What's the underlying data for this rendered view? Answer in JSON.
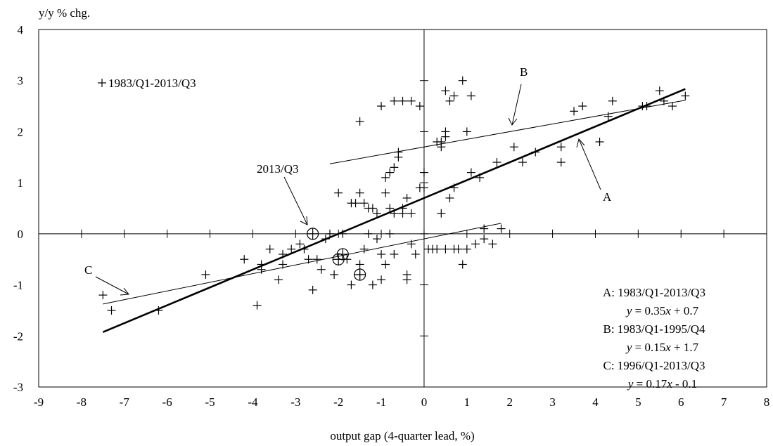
{
  "chart_data": {
    "type": "scatter",
    "ylabel": "y/y % chg.",
    "xlabel": "output gap (4-quarter lead, %)",
    "xlim": [
      -9,
      8
    ],
    "ylim": [
      -3,
      4
    ],
    "x_ticks": [
      -9,
      -8,
      -7,
      -6,
      -5,
      -4,
      -3,
      -2,
      -1,
      0,
      1,
      2,
      3,
      4,
      5,
      6,
      7,
      8
    ],
    "y_ticks": [
      -3,
      -2,
      -1,
      0,
      1,
      2,
      3,
      4
    ],
    "grid": false,
    "legend": {
      "marker": "+",
      "label": "1983/Q1-2013/Q3",
      "position": "top-left"
    },
    "series": [
      {
        "name": "1983/Q1-2013/Q3",
        "marker": "+",
        "points": [
          [
            -7.5,
            -1.2
          ],
          [
            -7.3,
            -1.5
          ],
          [
            -6.2,
            -1.5
          ],
          [
            -5.1,
            -0.8
          ],
          [
            -4.2,
            -0.5
          ],
          [
            -3.9,
            -1.4
          ],
          [
            -3.8,
            -0.6
          ],
          [
            -3.8,
            -0.7
          ],
          [
            -3.6,
            -0.3
          ],
          [
            -3.4,
            -0.9
          ],
          [
            -3.3,
            -0.6
          ],
          [
            -3.3,
            -0.4
          ],
          [
            -3.1,
            -0.3
          ],
          [
            -2.9,
            -0.2
          ],
          [
            -2.8,
            -0.3
          ],
          [
            -2.7,
            -0.5
          ],
          [
            -2.6,
            -1.1
          ],
          [
            -2.5,
            -0.5
          ],
          [
            -2.4,
            -0.7
          ],
          [
            -2.3,
            -0.1
          ],
          [
            -2.2,
            0.0
          ],
          [
            -2.1,
            -0.8
          ],
          [
            -2.0,
            0.8
          ],
          [
            -1.9,
            0.0
          ],
          [
            -1.8,
            -0.5
          ],
          [
            -1.7,
            0.6
          ],
          [
            -1.7,
            -1.0
          ],
          [
            -1.6,
            0.6
          ],
          [
            -1.5,
            0.8
          ],
          [
            -1.5,
            -0.6
          ],
          [
            -1.5,
            -0.8
          ],
          [
            -1.5,
            2.2
          ],
          [
            -1.4,
            0.6
          ],
          [
            -1.4,
            -0.3
          ],
          [
            -1.3,
            0.5
          ],
          [
            -1.3,
            0.0
          ],
          [
            -1.2,
            0.5
          ],
          [
            -1.2,
            -1.0
          ],
          [
            -1.1,
            0.4
          ],
          [
            -1.1,
            -0.1
          ],
          [
            -1.0,
            -0.4
          ],
          [
            -1.0,
            -0.9
          ],
          [
            -1.0,
            2.5
          ],
          [
            -0.9,
            1.1
          ],
          [
            -0.9,
            0.8
          ],
          [
            -0.9,
            -0.6
          ],
          [
            -0.8,
            1.2
          ],
          [
            -0.8,
            0.0
          ],
          [
            -0.8,
            0.5
          ],
          [
            -0.7,
            1.3
          ],
          [
            -0.7,
            -0.4
          ],
          [
            -0.7,
            0.4
          ],
          [
            -0.7,
            2.6
          ],
          [
            -0.6,
            1.5
          ],
          [
            -0.6,
            1.6
          ],
          [
            -0.5,
            0.5
          ],
          [
            -0.5,
            0.4
          ],
          [
            -0.5,
            2.6
          ],
          [
            -0.4,
            0.7
          ],
          [
            -0.4,
            -0.8
          ],
          [
            -0.4,
            -0.9
          ],
          [
            -0.3,
            0.4
          ],
          [
            -0.3,
            -0.2
          ],
          [
            -0.3,
            2.6
          ],
          [
            -0.2,
            -0.4
          ],
          [
            -0.1,
            2.5
          ],
          [
            -0.1,
            0.9
          ],
          [
            0.0,
            1.2
          ],
          [
            0.0,
            0.9
          ],
          [
            0.1,
            -0.3
          ],
          [
            0.2,
            -0.3
          ],
          [
            0.3,
            1.8
          ],
          [
            0.3,
            -0.3
          ],
          [
            0.4,
            1.8
          ],
          [
            0.4,
            1.7
          ],
          [
            0.4,
            0.4
          ],
          [
            0.5,
            1.9
          ],
          [
            0.5,
            2.8
          ],
          [
            0.5,
            2.0
          ],
          [
            0.5,
            -0.3
          ],
          [
            0.6,
            0.7
          ],
          [
            0.6,
            2.6
          ],
          [
            0.7,
            -0.3
          ],
          [
            0.7,
            0.9
          ],
          [
            0.7,
            2.7
          ],
          [
            0.8,
            -0.3
          ],
          [
            0.9,
            -0.6
          ],
          [
            0.9,
            3.0
          ],
          [
            1.0,
            2.0
          ],
          [
            1.0,
            -0.3
          ],
          [
            1.1,
            2.7
          ],
          [
            1.1,
            1.2
          ],
          [
            1.2,
            -0.2
          ],
          [
            1.3,
            1.1
          ],
          [
            1.4,
            0.1
          ],
          [
            1.4,
            -0.1
          ],
          [
            1.6,
            -0.2
          ],
          [
            1.7,
            1.4
          ],
          [
            1.8,
            0.1
          ],
          [
            2.1,
            1.7
          ],
          [
            2.3,
            1.4
          ],
          [
            2.6,
            1.6
          ],
          [
            3.2,
            1.7
          ],
          [
            3.2,
            1.4
          ],
          [
            3.5,
            2.4
          ],
          [
            3.7,
            2.5
          ],
          [
            4.1,
            1.8
          ],
          [
            4.3,
            2.3
          ],
          [
            4.4,
            2.6
          ],
          [
            5.1,
            2.5
          ],
          [
            5.2,
            2.5
          ],
          [
            5.5,
            2.8
          ],
          [
            5.6,
            2.6
          ],
          [
            5.8,
            2.5
          ],
          [
            6.1,
            2.7
          ]
        ]
      }
    ],
    "highlighted_points": [
      {
        "x": -2.6,
        "y": 0.0,
        "label": "2013/Q3"
      },
      {
        "x": -1.9,
        "y": -0.4
      },
      {
        "x": -2.0,
        "y": -0.5
      },
      {
        "x": -1.5,
        "y": -0.8
      }
    ],
    "fit_lines": [
      {
        "name": "A",
        "x_range": [
          -7.5,
          6.1
        ],
        "slope": 0.35,
        "intercept": 0.7,
        "emphasis": "bold"
      },
      {
        "name": "B",
        "x_range": [
          -2.2,
          6.1
        ],
        "slope": 0.15,
        "intercept": 1.7,
        "emphasis": "thin"
      },
      {
        "name": "C",
        "x_range": [
          -7.5,
          1.8
        ],
        "slope": 0.17,
        "intercept": -0.1,
        "emphasis": "thin"
      }
    ],
    "annotations": {
      "pointer_2013": "2013/Q3",
      "label_A": "A",
      "label_B": "B",
      "label_C": "C"
    },
    "equations": [
      {
        "period": "A: 1983/Q1-2013/Q3",
        "var": "y",
        "mid": " = 0.35",
        "xvar": "x",
        "tail": " + 0.7"
      },
      {
        "period": "B: 1983/Q1-1995/Q4",
        "var": "y",
        "mid": " = 0.15",
        "xvar": "x",
        "tail": " + 1.7"
      },
      {
        "period": "C: 1996/Q1-2013/Q3",
        "var": "y",
        "mid": " = 0.17",
        "xvar": "x",
        "tail": " - 0.1"
      }
    ]
  }
}
